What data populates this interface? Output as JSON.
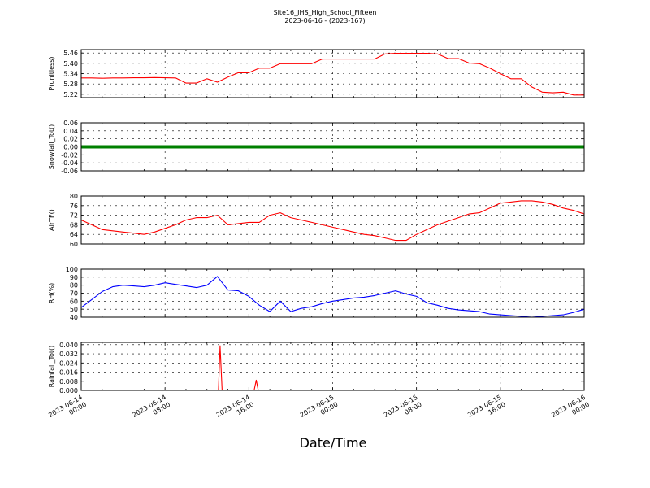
{
  "title_line1": "Site16_JHS_High_School_Fifteen",
  "title_line2": "2023-06-16 - (2023-167)",
  "xlabel": "Date/Time",
  "x_ticks": [
    "2023-06-14\n00:00",
    "2023-06-14\n08:00",
    "2023-06-14\n16:00",
    "2023-06-15\n00:00",
    "2023-06-15\n08:00",
    "2023-06-15\n16:00",
    "2023-06-16\n00:00"
  ],
  "chart_data": [
    {
      "type": "line",
      "ylabel": "P(unitless)",
      "ylim": [
        5.2,
        5.48
      ],
      "yticks": [
        "5.22",
        "5.28",
        "5.34",
        "5.40",
        "5.46"
      ],
      "color": "#ff0000",
      "grid": true,
      "x": [
        0,
        1,
        2,
        3,
        4,
        5,
        6,
        7,
        8,
        9,
        10,
        11,
        12,
        13,
        14,
        15,
        16,
        17,
        18,
        19,
        20,
        21,
        22,
        23,
        24,
        25,
        26,
        27,
        28,
        29,
        30,
        31,
        32,
        33,
        34,
        35,
        36,
        37,
        38,
        39,
        40,
        41,
        42,
        43,
        44,
        45,
        46,
        47,
        48
      ],
      "values": [
        5.315,
        5.315,
        5.313,
        5.315,
        5.315,
        5.316,
        5.316,
        5.317,
        5.316,
        5.315,
        5.285,
        5.285,
        5.31,
        5.29,
        5.32,
        5.345,
        5.345,
        5.372,
        5.372,
        5.398,
        5.398,
        5.398,
        5.398,
        5.425,
        5.425,
        5.425,
        5.425,
        5.425,
        5.425,
        5.455,
        5.458,
        5.458,
        5.458,
        5.458,
        5.455,
        5.428,
        5.428,
        5.402,
        5.398,
        5.372,
        5.34,
        5.31,
        5.31,
        5.262,
        5.232,
        5.228,
        5.232,
        5.215,
        5.215
      ]
    },
    {
      "type": "line",
      "ylabel": "Snowfall_Tot()",
      "ylim": [
        -0.06,
        0.06
      ],
      "yticks": [
        "-0.06",
        "-0.04",
        "-0.02",
        "0.00",
        "0.02",
        "0.04",
        "0.06"
      ],
      "color": "#008000",
      "grid": true,
      "x": [
        0,
        48
      ],
      "values": [
        0,
        0
      ]
    },
    {
      "type": "line",
      "ylabel": "AirTF()",
      "ylim": [
        60,
        80
      ],
      "yticks": [
        "60",
        "64",
        "68",
        "72",
        "76",
        "80"
      ],
      "color": "#ff0000",
      "grid": true,
      "x": [
        0,
        1,
        2,
        3,
        4,
        5,
        6,
        7,
        8,
        9,
        10,
        11,
        12,
        13,
        14,
        15,
        16,
        17,
        18,
        19,
        20,
        21,
        22,
        23,
        24,
        25,
        26,
        27,
        28,
        29,
        30,
        31,
        32,
        33,
        34,
        35,
        36,
        37,
        38,
        39,
        40,
        41,
        42,
        43,
        44,
        45,
        46,
        47,
        48
      ],
      "values": [
        70,
        68,
        66,
        65.5,
        65,
        64.5,
        64,
        65,
        66.5,
        68,
        70,
        71,
        71,
        72,
        68,
        68.5,
        69,
        69,
        72,
        73,
        71,
        70,
        69,
        68,
        67,
        66,
        65,
        64,
        63.5,
        62.5,
        61.5,
        61.5,
        64,
        66,
        68,
        69.5,
        71,
        72.5,
        73,
        75,
        77,
        77.5,
        78,
        78,
        77.5,
        76.5,
        75,
        74,
        72.5
      ]
    },
    {
      "type": "line",
      "ylabel": "RH(%)",
      "ylim": [
        40,
        100
      ],
      "yticks": [
        "40",
        "50",
        "60",
        "70",
        "80",
        "90",
        "100"
      ],
      "color": "#0000ff",
      "grid": true,
      "x": [
        0,
        1,
        2,
        3,
        4,
        5,
        6,
        7,
        8,
        9,
        10,
        11,
        12,
        13,
        14,
        15,
        16,
        17,
        18,
        19,
        20,
        21,
        22,
        23,
        24,
        25,
        26,
        27,
        28,
        29,
        30,
        31,
        32,
        33,
        34,
        35,
        36,
        37,
        38,
        39,
        40,
        41,
        42,
        43,
        44,
        45,
        46,
        47,
        48
      ],
      "values": [
        52,
        62,
        72,
        78,
        80,
        79,
        78,
        80,
        83,
        81,
        79,
        77,
        80,
        91,
        74,
        73,
        66,
        55,
        47,
        60,
        47,
        51,
        53,
        57,
        60,
        62,
        64,
        65,
        67,
        70,
        73,
        69,
        66,
        58,
        55,
        51,
        49,
        48,
        47,
        44,
        43,
        42,
        41,
        40,
        41,
        42,
        43,
        46,
        50
      ]
    },
    {
      "type": "line",
      "ylabel": "Rainfall_Tot()",
      "ylim": [
        0,
        0.042
      ],
      "yticks": [
        "0.000",
        "0.008",
        "0.016",
        "0.024",
        "0.032",
        "0.040"
      ],
      "color": "#ff0000",
      "grid": true,
      "x": [
        0,
        13.1,
        13.25,
        13.45,
        16.5,
        16.7,
        16.9,
        48
      ],
      "values": [
        0,
        0,
        0.039,
        0,
        0,
        0.009,
        0,
        0
      ]
    }
  ]
}
